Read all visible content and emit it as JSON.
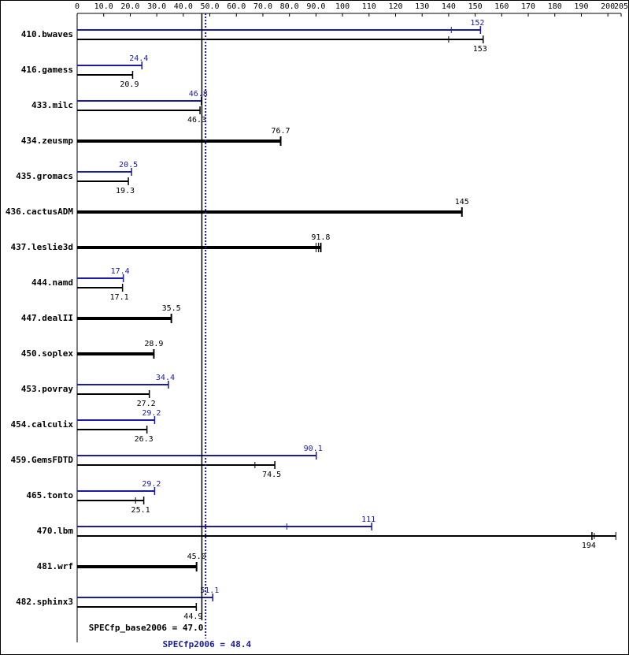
{
  "chart_data": {
    "type": "bar",
    "orientation": "horizontal",
    "xlim": [
      0,
      205
    ],
    "x_ticks": [
      0,
      10.0,
      20.0,
      30.0,
      40.0,
      50.0,
      60.0,
      70.0,
      80.0,
      90.0,
      100,
      110,
      120,
      130,
      140,
      150,
      160,
      170,
      180,
      190,
      200,
      205
    ],
    "x_tick_labels": [
      "0",
      "10.0",
      "20.0",
      "30.0",
      "40.0",
      "50.0",
      "60.0",
      "70.0",
      "80.0",
      "90.0",
      "100",
      "110",
      "120",
      "130",
      "140",
      "150",
      "160",
      "170",
      "180",
      "190",
      "200",
      "205"
    ],
    "colors": {
      "peak": "#1a1aa6",
      "base": "#000000"
    },
    "benchmarks": [
      {
        "name": "410.bwaves",
        "peak": 152,
        "peak_label": "152",
        "peak_min": 141,
        "base": 153,
        "base_label": "153",
        "base_min": 140
      },
      {
        "name": "416.gamess",
        "peak": 24.4,
        "peak_label": "24.4",
        "base": 20.9,
        "base_label": "20.9"
      },
      {
        "name": "433.milc",
        "peak": 46.8,
        "peak_label": "46.8",
        "base": 46.3,
        "base_label": "46.3"
      },
      {
        "name": "434.zeusmp",
        "combined": 76.7,
        "combined_label": "76.7"
      },
      {
        "name": "435.gromacs",
        "peak": 20.5,
        "peak_label": "20.5",
        "base": 19.3,
        "base_label": "19.3"
      },
      {
        "name": "436.cactusADM",
        "combined": 145,
        "combined_label": "145"
      },
      {
        "name": "437.leslie3d",
        "combined": 91.8,
        "combined_label": "91.8"
      },
      {
        "name": "444.namd",
        "peak": 17.4,
        "peak_label": "17.4",
        "base": 17.1,
        "base_label": "17.1"
      },
      {
        "name": "447.dealII",
        "combined": 35.5,
        "combined_label": "35.5"
      },
      {
        "name": "450.soplex",
        "combined": 28.9,
        "combined_label": "28.9"
      },
      {
        "name": "453.povray",
        "peak": 34.4,
        "peak_label": "34.4",
        "base": 27.2,
        "base_label": "27.2"
      },
      {
        "name": "454.calculix",
        "peak": 29.2,
        "peak_label": "29.2",
        "base": 26.3,
        "base_label": "26.3"
      },
      {
        "name": "459.GemsFDTD",
        "peak": 90.1,
        "peak_label": "90.1",
        "base": 74.5,
        "base_label": "74.5",
        "base_min": 67
      },
      {
        "name": "465.tonto",
        "peak": 29.2,
        "peak_label": "29.2",
        "base": 25.1,
        "base_label": "25.1",
        "base_min": 22
      },
      {
        "name": "470.lbm",
        "peak": 111,
        "peak_label": "111",
        "peak_min": 79,
        "base": 194,
        "base_label": "194",
        "base_max": 203
      },
      {
        "name": "481.wrf",
        "combined": 45.0,
        "combined_label": "45.0"
      },
      {
        "name": "482.sphinx3",
        "peak": 51.1,
        "peak_label": "51.1",
        "base": 44.9,
        "base_label": "44.9"
      }
    ],
    "base_summary": {
      "label": "SPECfp_base2006 = 47.0",
      "value": 47.0
    },
    "peak_summary": {
      "label": "SPECfp2006 = 48.4",
      "value": 48.4
    }
  }
}
